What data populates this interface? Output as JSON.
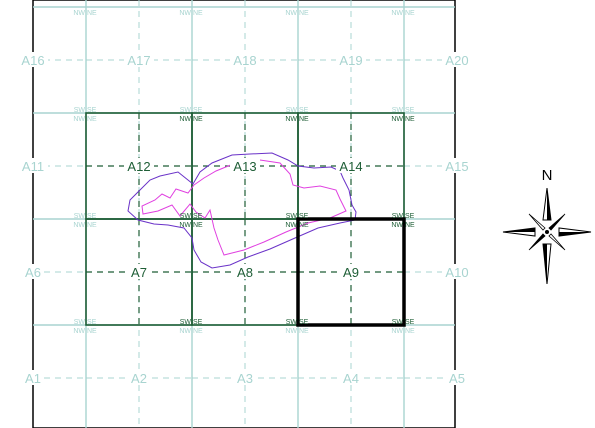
{
  "grid": {
    "cells": [
      {
        "id": "A1",
        "row": 0,
        "col": 0
      },
      {
        "id": "A2",
        "row": 0,
        "col": 1
      },
      {
        "id": "A3",
        "row": 0,
        "col": 2
      },
      {
        "id": "A4",
        "row": 0,
        "col": 3
      },
      {
        "id": "A5",
        "row": 0,
        "col": 4
      },
      {
        "id": "A6",
        "row": 1,
        "col": 0
      },
      {
        "id": "A7",
        "row": 1,
        "col": 1
      },
      {
        "id": "A8",
        "row": 1,
        "col": 2
      },
      {
        "id": "A9",
        "row": 1,
        "col": 3
      },
      {
        "id": "A10",
        "row": 1,
        "col": 4
      },
      {
        "id": "A11",
        "row": 2,
        "col": 0
      },
      {
        "id": "A12",
        "row": 2,
        "col": 1
      },
      {
        "id": "A13",
        "row": 2,
        "col": 2
      },
      {
        "id": "A14",
        "row": 2,
        "col": 3
      },
      {
        "id": "A15",
        "row": 2,
        "col": 4
      },
      {
        "id": "A16",
        "row": 3,
        "col": 0
      },
      {
        "id": "A17",
        "row": 3,
        "col": 1
      },
      {
        "id": "A18",
        "row": 3,
        "col": 2
      },
      {
        "id": "A19",
        "row": 3,
        "col": 3
      },
      {
        "id": "A20",
        "row": 3,
        "col": 4
      }
    ],
    "highlighted_cells": [
      "A7",
      "A8",
      "A9",
      "A12",
      "A13",
      "A14"
    ],
    "selected_cell": "A9",
    "quadrant_labels": {
      "ne": "NE",
      "nw": "NW",
      "se": "SE",
      "sw": "SW"
    }
  },
  "compass": {
    "north_label": "N"
  },
  "colors": {
    "grid_light": "#a8d4d0",
    "grid_dark": "#1e5e36",
    "label_light": "#a8d4d0",
    "label_dark": "#1e5e36",
    "selection": "#000000",
    "outline_outer": "#6a32c8",
    "outline_inner": "#e040e0"
  }
}
